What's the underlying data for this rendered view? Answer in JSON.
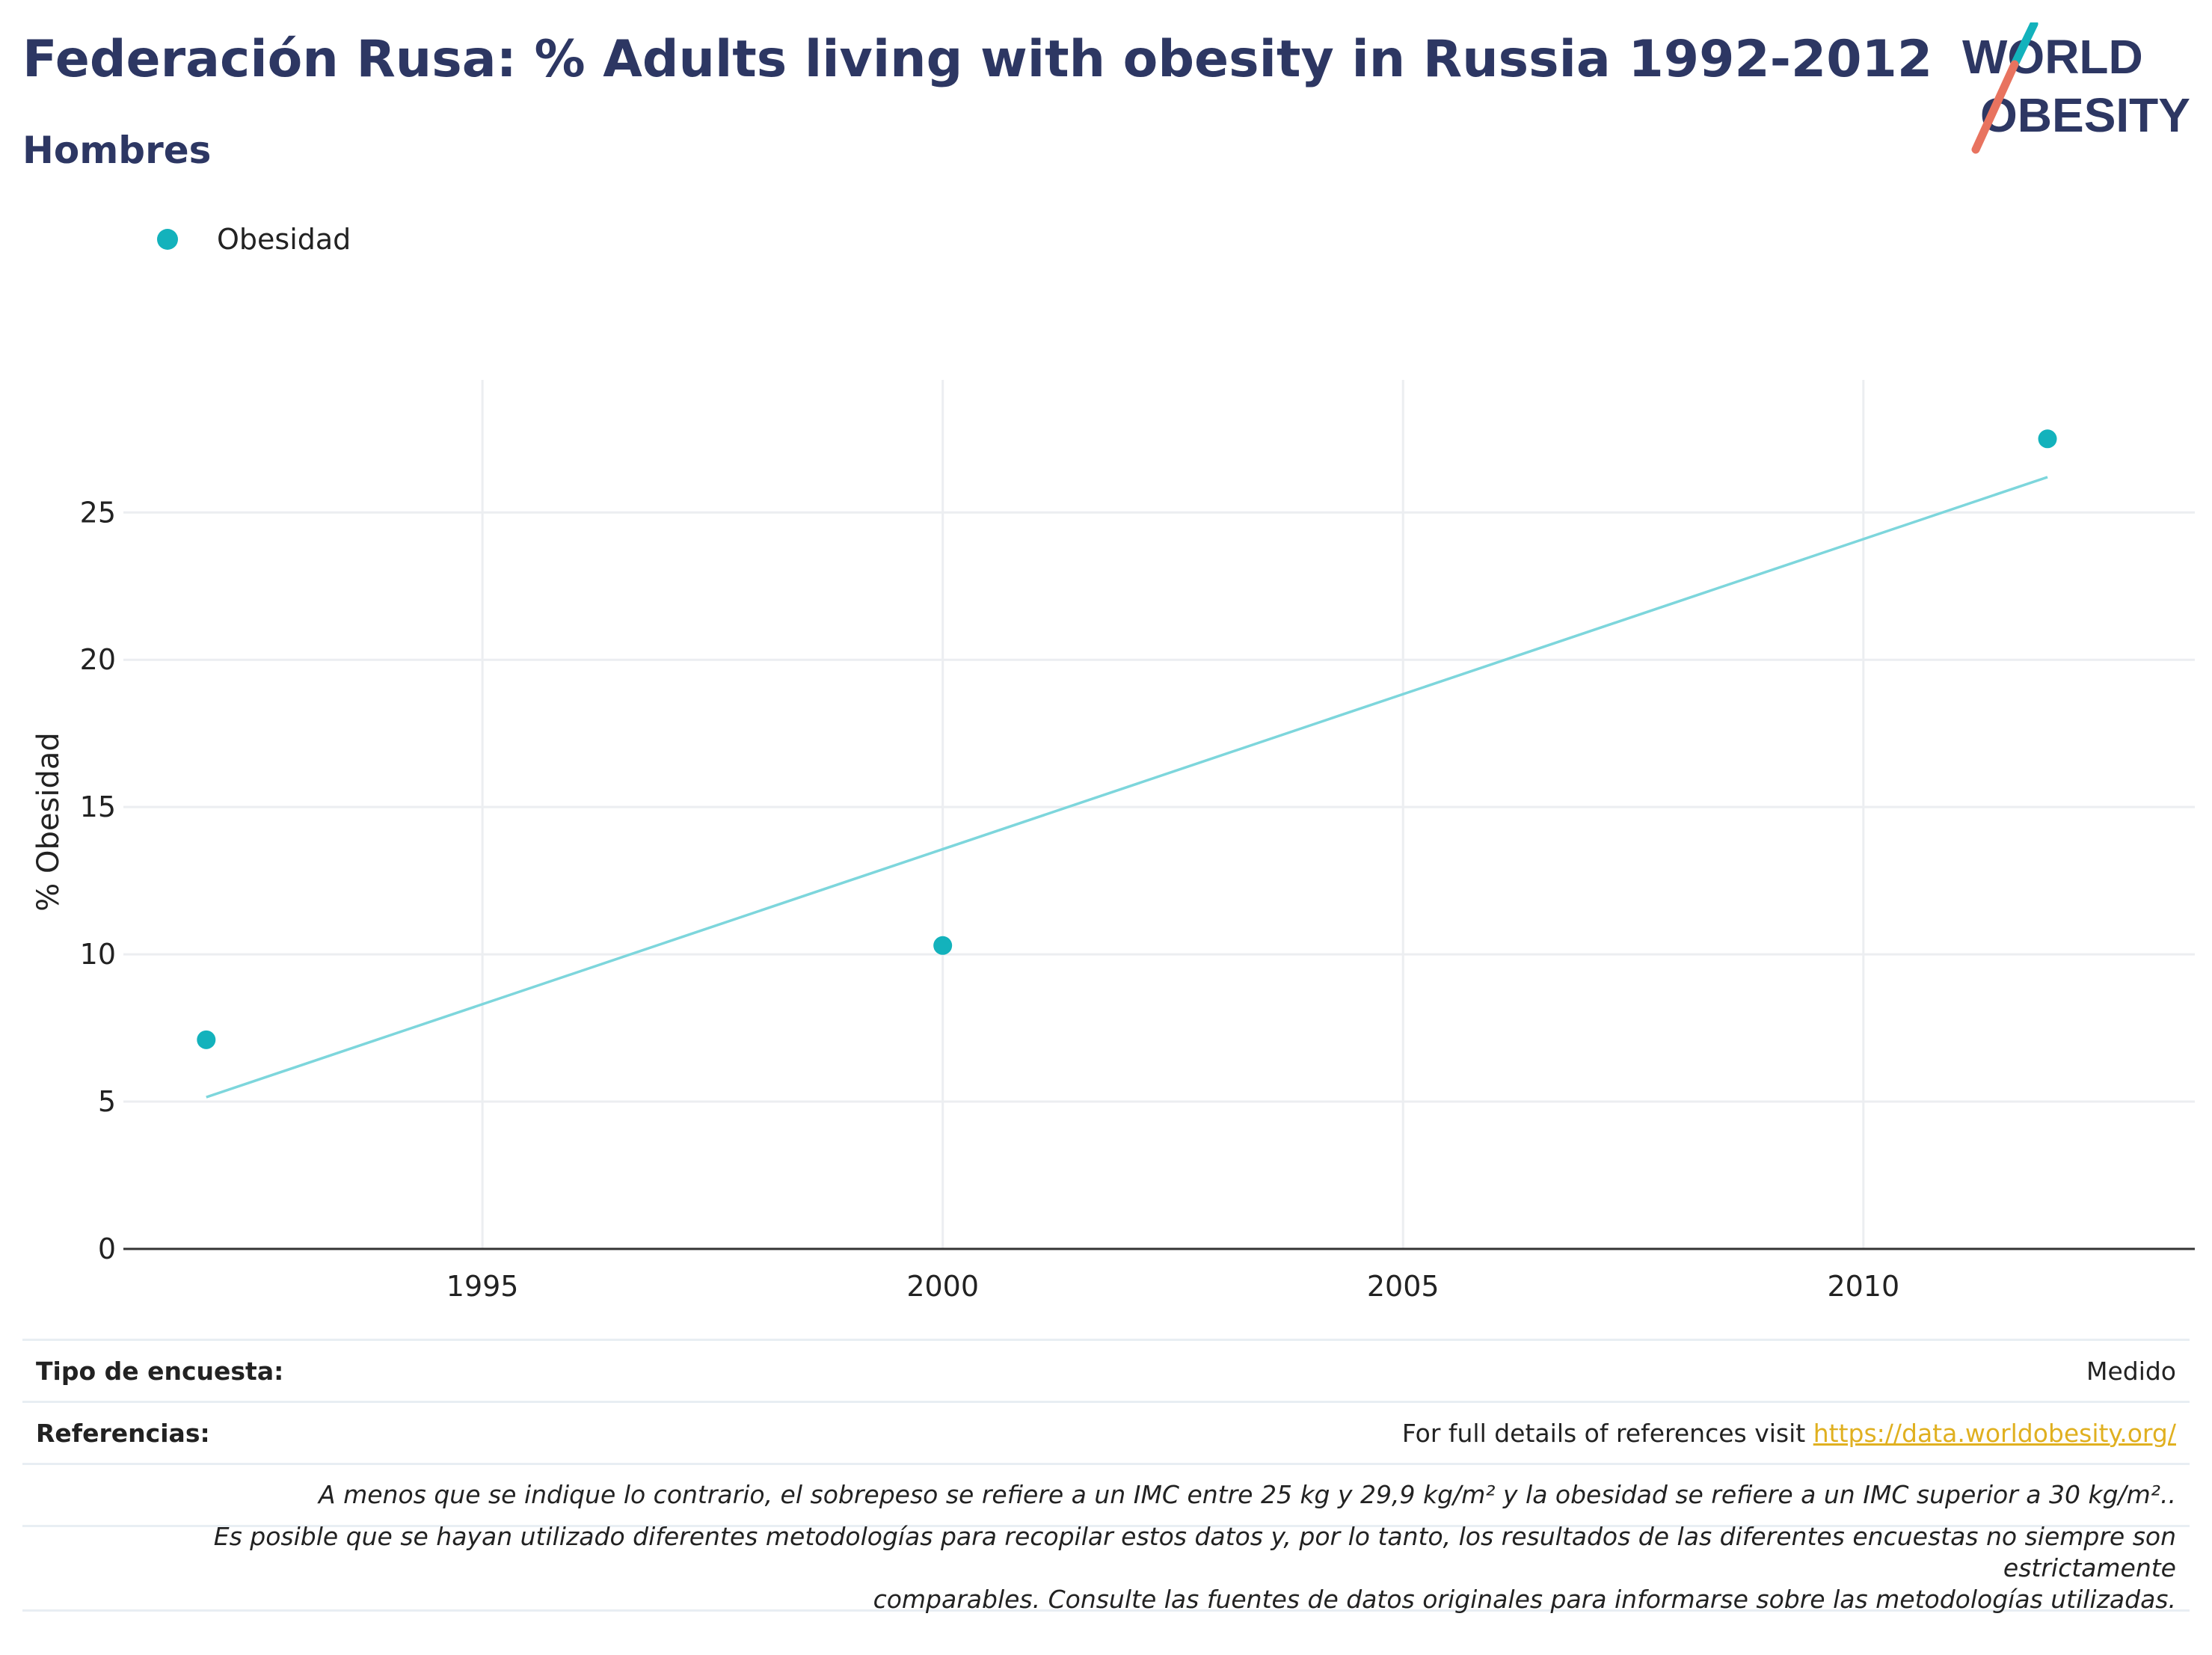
{
  "header": {
    "title": "Federación Rusa: % Adults living with obesity in Russia 1992-2012",
    "subtitle": "Hombres"
  },
  "logo": {
    "line1": "WORLD",
    "line2": "OBESITY",
    "colors": {
      "text": "#2d3763",
      "slash_teal": "#13b2bc",
      "slash_coral": "#e8735f"
    }
  },
  "legend": {
    "label": "Obesidad"
  },
  "colors": {
    "point": "#13b2bc",
    "trend": "#7dd6dc",
    "grid": "#eceef1",
    "axis": "#333333"
  },
  "chart_data": {
    "type": "scatter",
    "ylabel": "% Obesidad",
    "xlabel": "",
    "xlim": [
      1991.1,
      2013.6
    ],
    "ylim": [
      0,
      29.5
    ],
    "xticks": [
      1995,
      2000,
      2005,
      2010
    ],
    "yticks": [
      0,
      5,
      10,
      15,
      20,
      25
    ],
    "grid": true,
    "legend_position": "top-left",
    "series": [
      {
        "name": "Obesidad",
        "x": [
          1992,
          2000,
          2012
        ],
        "y": [
          7.1,
          10.3,
          27.5
        ]
      }
    ],
    "trendline": {
      "x": [
        1992,
        2012
      ],
      "y": [
        5.15,
        26.2
      ]
    }
  },
  "footer": {
    "survey_label": "Tipo de encuesta:",
    "survey_value": "Medido",
    "ref_label": "Referencias:",
    "ref_text": "For full details of references visit ",
    "ref_link": "https://data.worldobesity.org/",
    "note1": "A menos que se indique lo contrario, el sobrepeso se refiere a un IMC entre 25 kg y 29,9 kg/m² y la obesidad se refiere a un IMC superior a 30 kg/m²..",
    "note2a": "Es posible que se hayan utilizado diferentes metodologías para recopilar estos datos y, por lo tanto, los resultados de las diferentes encuestas no siempre son estrictamente",
    "note2b": "comparables. Consulte las fuentes de datos originales para informarse sobre las metodologías utilizadas."
  }
}
